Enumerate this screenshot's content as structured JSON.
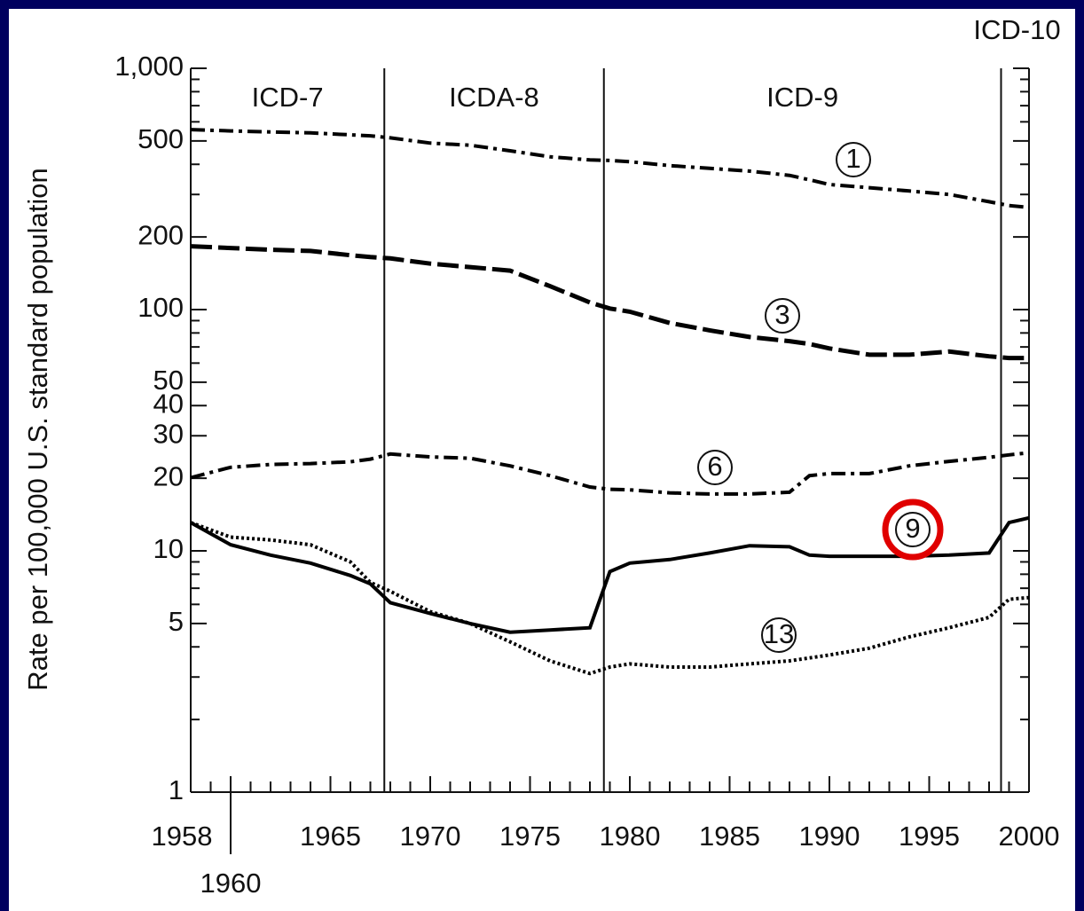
{
  "chart_data": {
    "type": "line",
    "y_label": "Rate per 100,000 U.S. standard population",
    "log_y": true,
    "xlim": [
      1958,
      2000
    ],
    "ylim": [
      1,
      1000
    ],
    "xticks": [
      1958,
      1960,
      1965,
      1970,
      1975,
      1980,
      1985,
      1990,
      1995,
      2000
    ],
    "xminorticks": [
      1959,
      1961,
      1962,
      1963,
      1964,
      1966,
      1967,
      1968,
      1969,
      1971,
      1972,
      1973,
      1974,
      1976,
      1977,
      1978,
      1979,
      1981,
      1982,
      1983,
      1984,
      1986,
      1987,
      1988,
      1989,
      1991,
      1992,
      1993,
      1994,
      1996,
      1997,
      1998,
      1999
    ],
    "yticks": [
      1,
      5,
      10,
      20,
      30,
      40,
      50,
      100,
      200,
      500,
      {
        "value": 1000,
        "label": "1,000"
      }
    ],
    "yminorticks": [
      2,
      3,
      4,
      6,
      7,
      8,
      9,
      60,
      70,
      80,
      90,
      300,
      400,
      600,
      700,
      800,
      900
    ],
    "periods": [
      {
        "label": "ICD-7",
        "start": 1958
      },
      {
        "label": "ICDA-8",
        "start": 1967.7
      },
      {
        "label": "ICD-9",
        "start": 1978.7
      },
      {
        "label": "ICD-10",
        "start": 1998.6
      }
    ],
    "x": [
      1958,
      1960,
      1962,
      1964,
      1966,
      1967,
      1968,
      1970,
      1972,
      1974,
      1976,
      1978,
      1979,
      1980,
      1982,
      1984,
      1986,
      1988,
      1989,
      1990,
      1992,
      1994,
      1996,
      1998,
      1999,
      2000
    ],
    "series": [
      {
        "name": "1",
        "color": "#000000",
        "style": "dash-dot",
        "values": [
          557,
          550,
          545,
          540,
          530,
          525,
          515,
          490,
          480,
          455,
          430,
          417,
          415,
          410,
          395,
          385,
          375,
          360,
          345,
          330,
          320,
          310,
          300,
          280,
          270,
          265
        ]
      },
      {
        "name": "3",
        "color": "#000000",
        "style": "dashed",
        "values": [
          183,
          180,
          177,
          175,
          168,
          165,
          163,
          155,
          150,
          145,
          125,
          107,
          101,
          98,
          88,
          82,
          77,
          74,
          72,
          69,
          65,
          65,
          67,
          64,
          63,
          63
        ]
      },
      {
        "name": "6",
        "color": "#000000",
        "style": "dash-dot",
        "values": [
          20.1,
          22.2,
          22.8,
          23.0,
          23.4,
          24,
          25.2,
          24.5,
          24.2,
          22.5,
          20.5,
          18.4,
          18.0,
          17.9,
          17.4,
          17.2,
          17.2,
          17.5,
          20.5,
          20.9,
          20.9,
          22.5,
          23.5,
          24.4,
          25,
          25.5
        ]
      },
      {
        "name": "9",
        "color": "#000000",
        "style": "solid",
        "highlight": "#e00000",
        "values": [
          13.1,
          10.6,
          9.6,
          8.9,
          7.9,
          7.3,
          6.1,
          5.5,
          5.0,
          4.6,
          4.7,
          4.8,
          8.2,
          8.9,
          9.2,
          9.8,
          10.5,
          10.4,
          9.6,
          9.5,
          9.5,
          9.5,
          9.6,
          9.8,
          13.1,
          13.7
        ]
      },
      {
        "name": "13",
        "color": "#000000",
        "style": "dotted",
        "values": [
          13.1,
          11.4,
          11.1,
          10.6,
          9.0,
          7.4,
          6.8,
          5.6,
          5.0,
          4.2,
          3.5,
          3.1,
          3.3,
          3.4,
          3.3,
          3.3,
          3.4,
          3.5,
          3.6,
          3.7,
          3.95,
          4.4,
          4.8,
          5.3,
          6.3,
          6.4
        ]
      }
    ]
  }
}
